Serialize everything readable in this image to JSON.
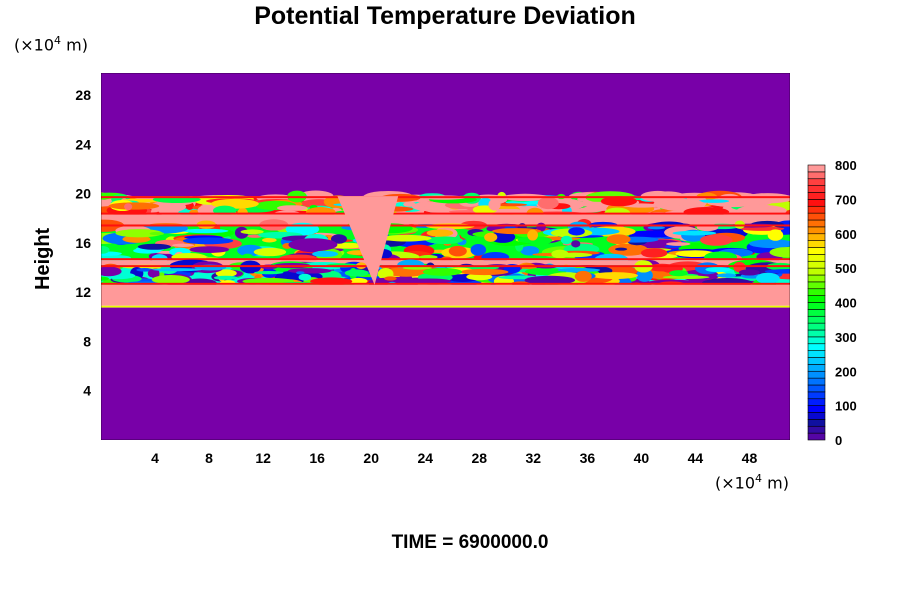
{
  "chart_data": {
    "type": "heatmap",
    "title": "Potential Temperature Deviation",
    "ylabel": "Height",
    "xunit": {
      "prefix": "(×10",
      "exp": "4",
      "suffix": " m)"
    },
    "yunit": {
      "prefix": "(×10",
      "exp": "4",
      "suffix": " m)"
    },
    "xlim": [
      0,
      51
    ],
    "ylim": [
      0,
      29.8
    ],
    "xticks": [
      4,
      8,
      12,
      16,
      20,
      24,
      28,
      32,
      36,
      40,
      44,
      48
    ],
    "yticks": [
      4,
      8,
      12,
      16,
      20,
      24,
      28
    ],
    "colorbar": {
      "min": 0,
      "max": 800,
      "step": 20,
      "ticks": [
        0,
        100,
        200,
        300,
        400,
        500,
        600,
        700,
        800
      ],
      "stops": [
        [
          0,
          "#7800a8"
        ],
        [
          60,
          "#1010a0"
        ],
        [
          100,
          "#0000ff"
        ],
        [
          200,
          "#0090ff"
        ],
        [
          280,
          "#00ffff"
        ],
        [
          340,
          "#00ff80"
        ],
        [
          420,
          "#00ff00"
        ],
        [
          500,
          "#c0ff00"
        ],
        [
          560,
          "#ffff00"
        ],
        [
          620,
          "#ff9000"
        ],
        [
          700,
          "#ff1010"
        ],
        [
          760,
          "#ff4040"
        ],
        [
          800,
          "#ff9999"
        ]
      ]
    },
    "field_layers": [
      {
        "y": [
          19.8,
          29.8
        ],
        "value": 0,
        "turbulent": false
      },
      {
        "y": [
          18.3,
          19.8
        ],
        "value": 700,
        "turbulent": true,
        "range": [
          0,
          800
        ]
      },
      {
        "y": [
          17.5,
          18.3
        ],
        "value": 800,
        "turbulent": false
      },
      {
        "y": [
          14.6,
          17.5
        ],
        "value": 400,
        "turbulent": true,
        "range": [
          0,
          800
        ]
      },
      {
        "y": [
          14.2,
          14.6
        ],
        "value": 800,
        "turbulent": false
      },
      {
        "y": [
          12.6,
          14.2
        ],
        "value": 300,
        "turbulent": true,
        "range": [
          0,
          800
        ]
      },
      {
        "y": [
          10.9,
          12.6
        ],
        "value": 800,
        "turbulent": false
      },
      {
        "y": [
          10.75,
          10.9
        ],
        "value": 540,
        "turbulent": false
      },
      {
        "y": [
          0,
          10.75
        ],
        "value": 0,
        "turbulent": false
      }
    ],
    "plume": {
      "x": [
        17.5,
        22
      ],
      "y": [
        12.6,
        19.8
      ],
      "value": 800
    },
    "annotation": "TIME = 6900000.0"
  }
}
